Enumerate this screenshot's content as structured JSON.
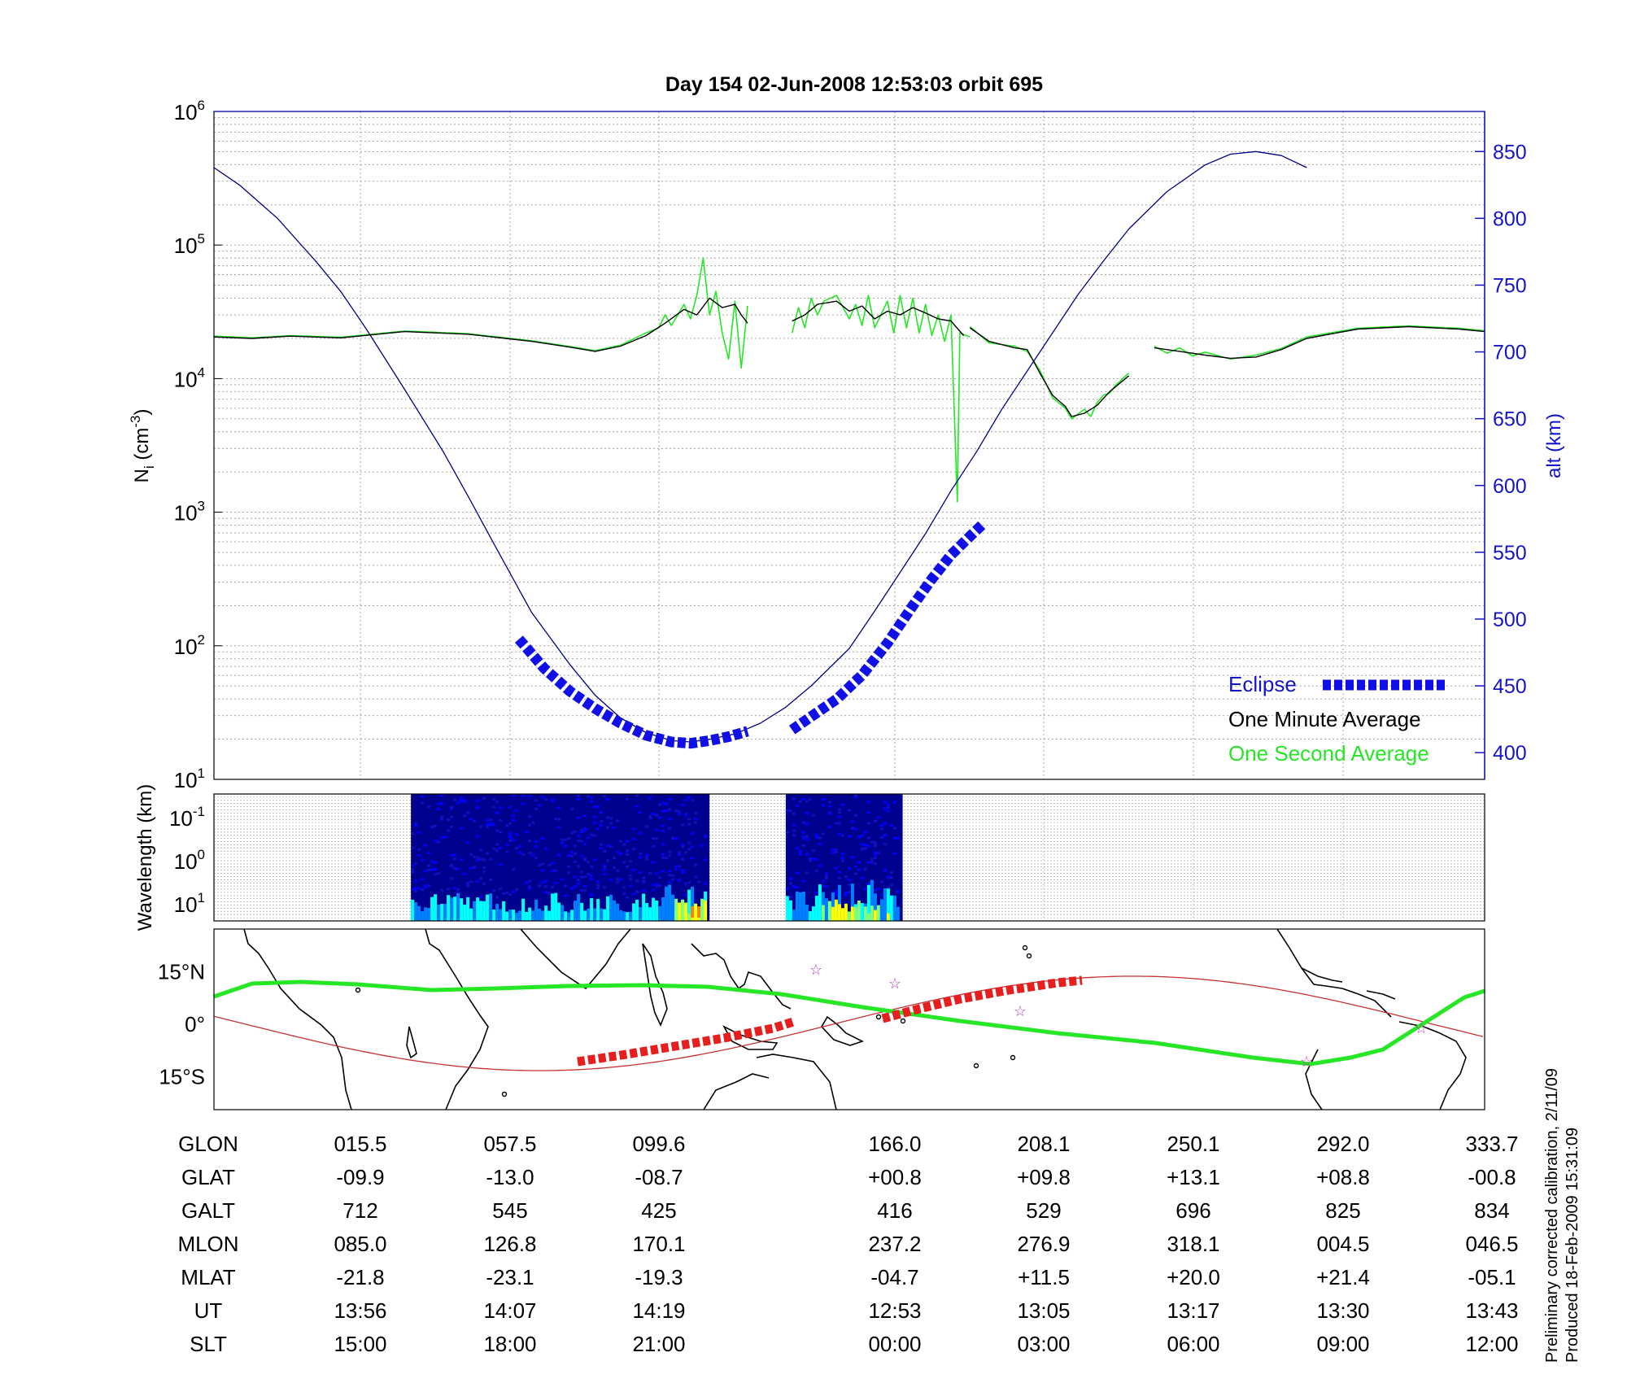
{
  "chart_data": [
    {
      "type": "line",
      "title": "Day 154  02-Jun-2008 12:53:03   orbit 695",
      "ylabel_left": {
        "base": "N",
        "sub": "i",
        "rest": " (cm",
        "sup": "-3",
        "close": ")"
      },
      "ylabel_right": "alt (km)",
      "yscale_left": "log",
      "ylim_left": [
        10,
        1000000
      ],
      "yticks_left": [
        {
          "base": "10",
          "exp": "1"
        },
        {
          "base": "10",
          "exp": "2"
        },
        {
          "base": "10",
          "exp": "3"
        },
        {
          "base": "10",
          "exp": "4"
        },
        {
          "base": "10",
          "exp": "5"
        },
        {
          "base": "10",
          "exp": "6"
        }
      ],
      "ylim_right": [
        380,
        880
      ],
      "yticks_right": [
        "400",
        "450",
        "500",
        "550",
        "600",
        "650",
        "700",
        "750",
        "800",
        "850"
      ],
      "xlim_index": [
        0,
        8.6
      ],
      "grid": true,
      "legend_position": "bottom-right",
      "series": [
        {
          "name": "One Minute Average",
          "color": "#000000",
          "segments": [
            [
              [
                0,
                20500
              ],
              [
                0.3,
                20000
              ],
              [
                0.6,
                20800
              ],
              [
                1.0,
                20200
              ],
              [
                1.5,
                22500
              ],
              [
                2.0,
                21500
              ],
              [
                2.5,
                19000
              ],
              [
                2.8,
                17200
              ],
              [
                3.0,
                16000
              ],
              [
                3.2,
                17500
              ],
              [
                3.4,
                21000
              ],
              [
                3.55,
                26000
              ],
              [
                3.7,
                33000
              ],
              [
                3.8,
                30000
              ],
              [
                3.9,
                40000
              ],
              [
                4.0,
                34000
              ],
              [
                4.1,
                36000
              ],
              [
                4.15,
                30000
              ],
              [
                4.2,
                26000
              ]
            ],
            [
              [
                4.55,
                27000
              ],
              [
                4.65,
                30000
              ],
              [
                4.75,
                36000
              ],
              [
                4.9,
                38000
              ],
              [
                5.0,
                32000
              ],
              [
                5.1,
                35000
              ],
              [
                5.2,
                28000
              ],
              [
                5.3,
                32000
              ],
              [
                5.4,
                30000
              ],
              [
                5.5,
                34000
              ],
              [
                5.6,
                31000
              ],
              [
                5.7,
                28000
              ],
              [
                5.8,
                27000
              ],
              [
                5.9,
                21000
              ]
            ],
            [
              [
                5.95,
                24000
              ],
              [
                6.1,
                19000
              ],
              [
                6.3,
                17000
              ],
              [
                6.4,
                16500
              ],
              [
                6.5,
                11000
              ],
              [
                6.6,
                7500
              ],
              [
                6.7,
                6200
              ],
              [
                6.75,
                5200
              ],
              [
                6.85,
                5500
              ],
              [
                6.95,
                6300
              ],
              [
                7.05,
                8000
              ],
              [
                7.2,
                10500
              ]
            ],
            [
              [
                7.4,
                17000
              ],
              [
                7.6,
                16000
              ],
              [
                7.8,
                15000
              ],
              [
                8.0,
                14200
              ],
              [
                8.2,
                14500
              ],
              [
                8.4,
                16500
              ],
              [
                8.6,
                20000
              ],
              [
                9.0,
                23500
              ],
              [
                9.4,
                24500
              ],
              [
                9.8,
                23500
              ],
              [
                10.0,
                22500
              ]
            ]
          ]
        },
        {
          "name": "One Second Average",
          "color": "#26e626",
          "segments": [
            [
              [
                0,
                20800
              ],
              [
                0.3,
                20200
              ],
              [
                0.6,
                21000
              ],
              [
                1.0,
                20400
              ],
              [
                1.5,
                22700
              ],
              [
                2.0,
                21700
              ],
              [
                2.5,
                19200
              ],
              [
                2.8,
                17400
              ],
              [
                3.0,
                16200
              ],
              [
                3.2,
                17800
              ],
              [
                3.4,
                22000
              ],
              [
                3.5,
                24000
              ],
              [
                3.55,
                30000
              ],
              [
                3.6,
                25000
              ],
              [
                3.7,
                36000
              ],
              [
                3.75,
                28000
              ],
              [
                3.8,
                42000
              ],
              [
                3.85,
                80000
              ],
              [
                3.9,
                30000
              ],
              [
                3.95,
                45000
              ],
              [
                4.0,
                22000
              ],
              [
                4.05,
                14000
              ],
              [
                4.1,
                38000
              ],
              [
                4.15,
                12000
              ],
              [
                4.2,
                35000
              ]
            ],
            [
              [
                4.55,
                22000
              ],
              [
                4.6,
                34000
              ],
              [
                4.65,
                24000
              ],
              [
                4.7,
                40000
              ],
              [
                4.75,
                30000
              ],
              [
                4.8,
                38000
              ],
              [
                4.9,
                42000
              ],
              [
                5.0,
                28000
              ],
              [
                5.05,
                36000
              ],
              [
                5.1,
                25000
              ],
              [
                5.15,
                42000
              ],
              [
                5.2,
                24000
              ],
              [
                5.3,
                38000
              ],
              [
                5.35,
                22000
              ],
              [
                5.4,
                42000
              ],
              [
                5.45,
                24000
              ],
              [
                5.5,
                40000
              ],
              [
                5.55,
                22000
              ],
              [
                5.6,
                36000
              ],
              [
                5.65,
                21000
              ],
              [
                5.7,
                30000
              ],
              [
                5.75,
                19000
              ],
              [
                5.8,
                30000
              ],
              [
                5.85,
                1200
              ],
              [
                5.87,
                22000
              ],
              [
                5.95,
                20500
              ]
            ],
            [
              [
                5.95,
                24500
              ],
              [
                6.1,
                18500
              ],
              [
                6.3,
                17500
              ],
              [
                6.4,
                16000
              ],
              [
                6.5,
                11500
              ],
              [
                6.6,
                7200
              ],
              [
                6.7,
                6000
              ],
              [
                6.75,
                5000
              ],
              [
                6.85,
                5900
              ],
              [
                6.9,
                5200
              ],
              [
                6.95,
                6600
              ],
              [
                7.0,
                7500
              ],
              [
                7.05,
                7800
              ],
              [
                7.1,
                9000
              ],
              [
                7.2,
                11000
              ]
            ],
            [
              [
                7.4,
                17500
              ],
              [
                7.5,
                15500
              ],
              [
                7.6,
                17000
              ],
              [
                7.7,
                14800
              ],
              [
                7.8,
                15800
              ],
              [
                8.0,
                14000
              ],
              [
                8.2,
                15000
              ],
              [
                8.4,
                16800
              ],
              [
                8.6,
                20500
              ],
              [
                9.0,
                23800
              ],
              [
                9.4,
                24800
              ],
              [
                9.8,
                23800
              ],
              [
                10.0,
                22800
              ]
            ]
          ]
        },
        {
          "name": "Altitude",
          "color": "#00008b",
          "axis": "right",
          "values": [
            [
              0,
              838
            ],
            [
              0.2,
              825
            ],
            [
              0.5,
              800
            ],
            [
              0.8,
              768
            ],
            [
              1.0,
              745
            ],
            [
              1.2,
              717
            ],
            [
              1.5,
              672
            ],
            [
              1.8,
              626
            ],
            [
              2.0,
              592
            ],
            [
              2.2,
              557
            ],
            [
              2.5,
              505
            ],
            [
              2.8,
              466
            ],
            [
              3.0,
              443
            ],
            [
              3.2,
              426
            ],
            [
              3.4,
              415
            ],
            [
              3.6,
              409
            ],
            [
              3.75,
              408
            ],
            [
              3.9,
              410
            ],
            [
              4.1,
              414
            ],
            [
              4.3,
              422
            ],
            [
              4.5,
              434
            ],
            [
              4.7,
              450
            ],
            [
              5.0,
              478
            ],
            [
              5.2,
              506
            ],
            [
              5.4,
              535
            ],
            [
              5.6,
              564
            ],
            [
              5.8,
              596
            ],
            [
              6.0,
              625
            ],
            [
              6.2,
              657
            ],
            [
              6.5,
              700
            ],
            [
              6.8,
              743
            ],
            [
              7.0,
              768
            ],
            [
              7.2,
              792
            ],
            [
              7.5,
              820
            ],
            [
              7.8,
              840
            ],
            [
              8.0,
              848
            ],
            [
              8.2,
              850
            ],
            [
              8.4,
              847
            ],
            [
              8.6,
              838
            ]
          ]
        },
        {
          "name": "Eclipse",
          "color": "#1010e6",
          "axis": "right",
          "style": "dashed-thick",
          "segments": [
            [
              [
                2.4,
                485
              ],
              [
                2.6,
                463
              ],
              [
                2.8,
                446
              ],
              [
                3.0,
                433
              ],
              [
                3.2,
                422
              ],
              [
                3.4,
                413
              ],
              [
                3.6,
                408
              ],
              [
                3.75,
                407
              ],
              [
                3.9,
                409
              ],
              [
                4.05,
                412
              ],
              [
                4.2,
                416
              ]
            ],
            [
              [
                4.55,
                417
              ],
              [
                4.7,
                427
              ],
              [
                4.9,
                440
              ],
              [
                5.1,
                458
              ],
              [
                5.3,
                482
              ],
              [
                5.5,
                510
              ],
              [
                5.65,
                530
              ],
              [
                5.8,
                548
              ],
              [
                5.95,
                562
              ],
              [
                6.05,
                571
              ]
            ]
          ]
        }
      ],
      "legend": [
        {
          "label": "Eclipse",
          "color": "#1414c8"
        },
        {
          "label": "One Minute Average",
          "color": "#000000"
        },
        {
          "label": "One Second Average",
          "color": "#26e626"
        }
      ]
    },
    {
      "type": "heatmap",
      "ylabel": "Wavelength (km)",
      "yticks": [
        {
          "base": "10",
          "exp": "-1"
        },
        {
          "base": "10",
          "exp": "0"
        },
        {
          "base": "10",
          "exp": "1"
        }
      ],
      "blocks_x_index": [
        [
          1.55,
          3.9
        ],
        [
          4.5,
          5.42
        ]
      ],
      "colormap": [
        "#00008f",
        "#0000ff",
        "#0080ff",
        "#00ffff",
        "#80ff80",
        "#ffff00",
        "#ff8000"
      ]
    },
    {
      "type": "map",
      "yticks": [
        {
          "value": 15,
          "label": "15",
          "hemi": "N"
        },
        {
          "value": 0,
          "label": "0",
          "hemi": ""
        },
        {
          "value": -15,
          "label": "15",
          "hemi": "S"
        }
      ],
      "orbit_track_color": "#c83232",
      "eclipse_track_color": "#e61e1e",
      "magnetic_equator_color": "#26e626",
      "star_color": "#b33ab3"
    }
  ],
  "table": {
    "row_labels": [
      "GLON",
      "GLAT",
      "GALT",
      "MLON",
      "MLAT",
      "UT",
      "SLT"
    ],
    "columns": [
      [
        "015.5",
        "-09.9",
        "712",
        "085.0",
        "-21.8",
        "13:56",
        "15:00"
      ],
      [
        "057.5",
        "-13.0",
        "545",
        "126.8",
        "-23.1",
        "14:07",
        "18:00"
      ],
      [
        "099.6",
        "-08.7",
        "425",
        "170.1",
        "-19.3",
        "14:19",
        "21:00"
      ],
      [
        "166.0",
        "+00.8",
        "416",
        "237.2",
        "-04.7",
        "12:53",
        "00:00"
      ],
      [
        "208.1",
        "+09.8",
        "529",
        "276.9",
        "+11.5",
        "13:05",
        "03:00"
      ],
      [
        "250.1",
        "+13.1",
        "696",
        "318.1",
        "+20.0",
        "13:17",
        "06:00"
      ],
      [
        "292.0",
        "+08.8",
        "825",
        "004.5",
        "+21.4",
        "13:30",
        "09:00"
      ],
      [
        "333.7",
        "-00.8",
        "834",
        "046.5",
        "-05.1",
        "13:43",
        "12:00"
      ]
    ]
  },
  "annotations": {
    "calibration": "Preliminary corrected calibration, 2/11/09",
    "produced": "Produced 18-Feb-2009 15:31:09"
  }
}
